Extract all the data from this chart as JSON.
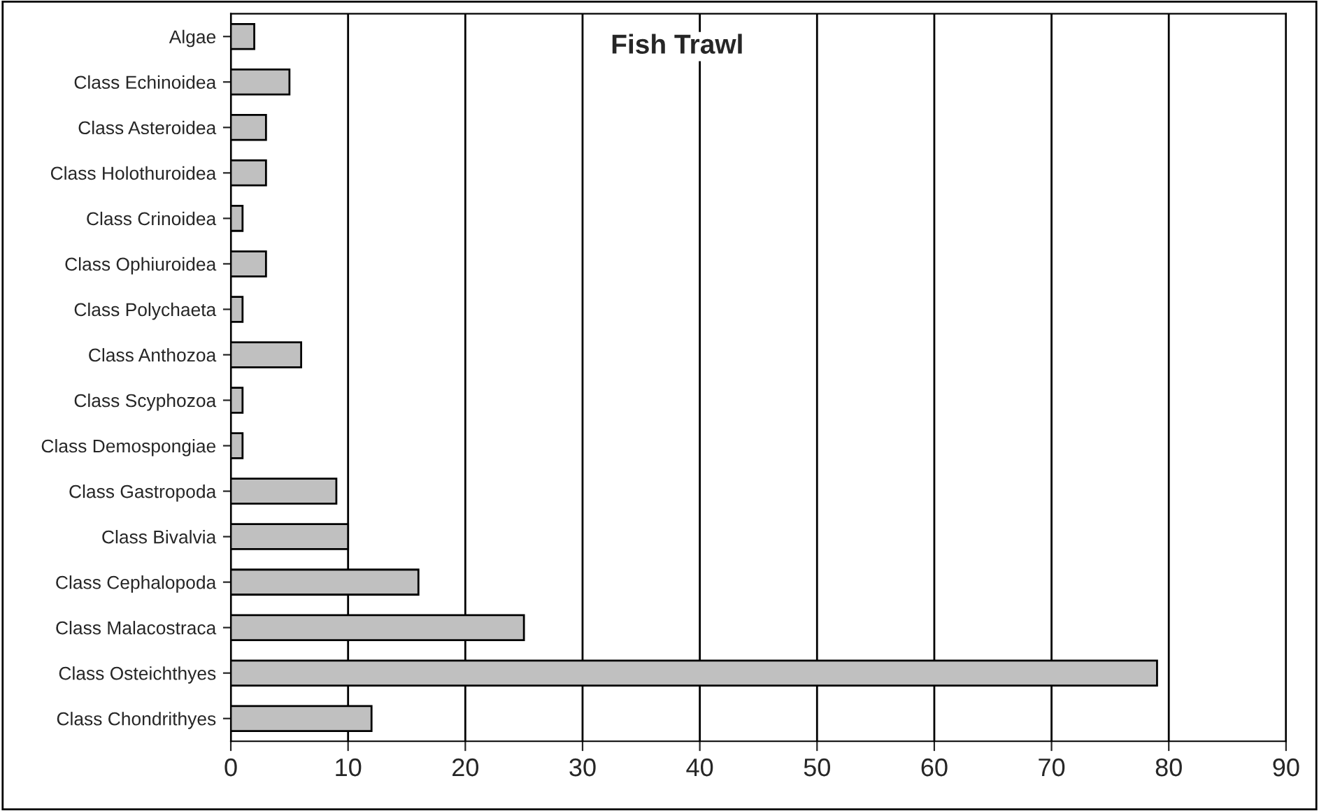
{
  "chart_data": {
    "type": "bar",
    "orientation": "horizontal",
    "title": "Fish Trawl",
    "categories": [
      "Algae",
      "Class Echinoidea",
      "Class Asteroidea",
      "Class Holothuroidea",
      "Class Crinoidea",
      "Class Ophiuroidea",
      "Class Polychaeta",
      "Class Anthozoa",
      "Class Scyphozoa",
      "Class Demospongiae",
      "Class Gastropoda",
      "Class Bivalvia",
      "Class Cephalopoda",
      "Class Malacostraca",
      "Class Osteichthyes",
      "Class Chondrithyes"
    ],
    "values": [
      2,
      5,
      3,
      3,
      1,
      3,
      1,
      6,
      1,
      1,
      9,
      10,
      16,
      25,
      79,
      12
    ],
    "color": "#c0c0c0",
    "xlim": [
      0,
      90
    ],
    "xticks": [
      0,
      10,
      20,
      30,
      40,
      50,
      60,
      70,
      80,
      90
    ],
    "grid": "x",
    "legend": false
  }
}
